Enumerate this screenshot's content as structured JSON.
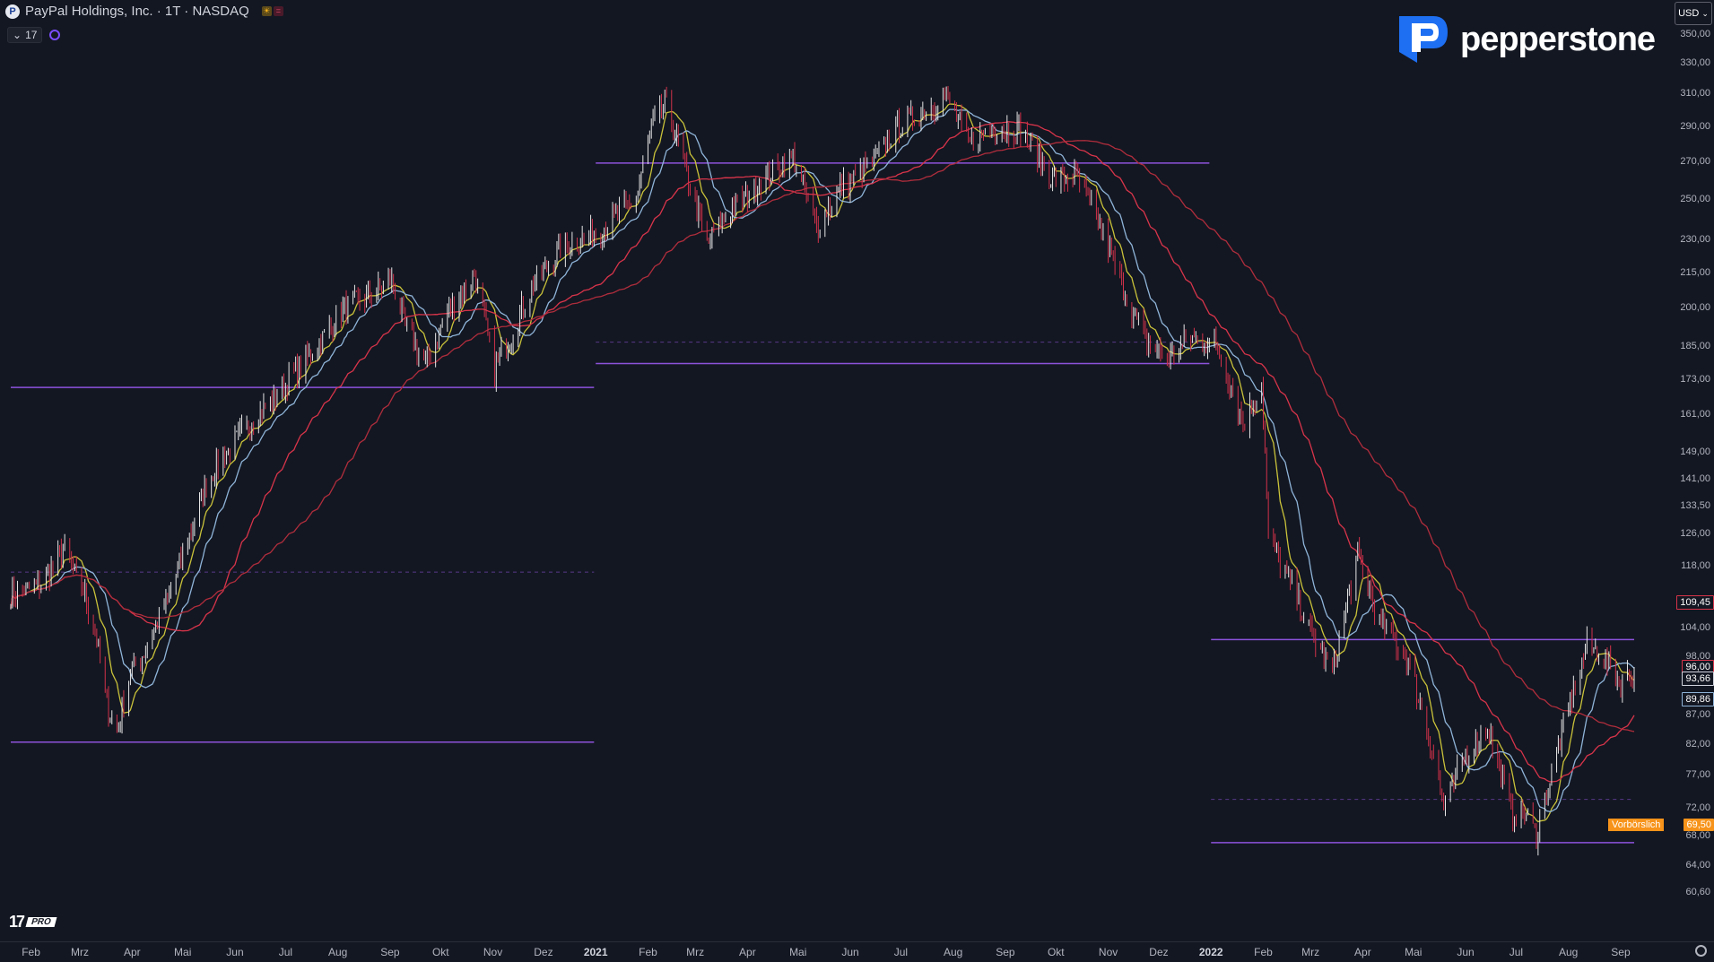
{
  "header": {
    "symbol_icon": "P",
    "title": "PayPal Holdings, Inc. · 1T · NASDAQ",
    "indicator_count": "17"
  },
  "brand": {
    "name": "pepperstone"
  },
  "currency": "USD",
  "watermark": {
    "mark": "17",
    "pro": "PRO"
  },
  "colors": {
    "background": "#131722",
    "up_candle": "#e6e6e6",
    "down_candle": "#d2314a",
    "horizontal_line": "#9b59f0",
    "sma10": "#c9c23a",
    "sma20": "#8fb4d8",
    "sma50": "#d8344a",
    "sma100": "#b02d3c",
    "last_price": "#f7931a"
  },
  "chart_data": {
    "type": "line",
    "title": "",
    "xlabel": "",
    "ylabel": "",
    "scale": "log",
    "ylim": [
      57,
      370
    ],
    "x_range": [
      "2020-01-20",
      "2022-09-09"
    ],
    "x_ticks": [
      {
        "label": "Feb",
        "date": "2020-02-01"
      },
      {
        "label": "Mrz",
        "date": "2020-03-01"
      },
      {
        "label": "Apr",
        "date": "2020-04-01"
      },
      {
        "label": "Mai",
        "date": "2020-05-01"
      },
      {
        "label": "Jun",
        "date": "2020-06-01"
      },
      {
        "label": "Jul",
        "date": "2020-07-01"
      },
      {
        "label": "Aug",
        "date": "2020-08-01"
      },
      {
        "label": "Sep",
        "date": "2020-09-01"
      },
      {
        "label": "Okt",
        "date": "2020-10-01"
      },
      {
        "label": "Nov",
        "date": "2020-11-01"
      },
      {
        "label": "Dez",
        "date": "2020-12-01"
      },
      {
        "label": "2021",
        "date": "2021-01-01",
        "bold": true
      },
      {
        "label": "Feb",
        "date": "2021-02-01"
      },
      {
        "label": "Mrz",
        "date": "2021-03-01"
      },
      {
        "label": "Apr",
        "date": "2021-04-01"
      },
      {
        "label": "Mai",
        "date": "2021-05-01"
      },
      {
        "label": "Jun",
        "date": "2021-06-01"
      },
      {
        "label": "Jul",
        "date": "2021-07-01"
      },
      {
        "label": "Aug",
        "date": "2021-08-01"
      },
      {
        "label": "Sep",
        "date": "2021-09-01"
      },
      {
        "label": "Okt",
        "date": "2021-10-01"
      },
      {
        "label": "Nov",
        "date": "2021-11-01"
      },
      {
        "label": "Dez",
        "date": "2021-12-01"
      },
      {
        "label": "2022",
        "date": "2022-01-01",
        "bold": true
      },
      {
        "label": "Feb",
        "date": "2022-02-01"
      },
      {
        "label": "Mrz",
        "date": "2022-03-01"
      },
      {
        "label": "Apr",
        "date": "2022-04-01"
      },
      {
        "label": "Mai",
        "date": "2022-05-01"
      },
      {
        "label": "Jun",
        "date": "2022-06-01"
      },
      {
        "label": "Jul",
        "date": "2022-07-01"
      },
      {
        "label": "Aug",
        "date": "2022-08-01"
      },
      {
        "label": "Sep",
        "date": "2022-09-01"
      }
    ],
    "y_ticks": [
      {
        "label": "350,00",
        "value": 350
      },
      {
        "label": "330,00",
        "value": 330
      },
      {
        "label": "310,00",
        "value": 310
      },
      {
        "label": "290,00",
        "value": 290
      },
      {
        "label": "270,00",
        "value": 270
      },
      {
        "label": "250,00",
        "value": 250
      },
      {
        "label": "230,00",
        "value": 230
      },
      {
        "label": "215,00",
        "value": 215
      },
      {
        "label": "200,00",
        "value": 200
      },
      {
        "label": "185,00",
        "value": 185
      },
      {
        "label": "173,00",
        "value": 173
      },
      {
        "label": "161,00",
        "value": 161
      },
      {
        "label": "149,00",
        "value": 149
      },
      {
        "label": "141,00",
        "value": 141
      },
      {
        "label": "133,50",
        "value": 133.5
      },
      {
        "label": "126,00",
        "value": 126
      },
      {
        "label": "118,00",
        "value": 118
      },
      {
        "label": "104,00",
        "value": 104
      },
      {
        "label": "98,00",
        "value": 98
      },
      {
        "label": "87,00",
        "value": 87
      },
      {
        "label": "82,00",
        "value": 82
      },
      {
        "label": "77,00",
        "value": 77
      },
      {
        "label": "72,00",
        "value": 72
      },
      {
        "label": "68,00",
        "value": 68
      },
      {
        "label": "64,00",
        "value": 64
      },
      {
        "label": "60,60",
        "value": 60.6
      }
    ],
    "price_labels": [
      {
        "label": "109,45",
        "value": 109.45,
        "style": "outline-red"
      },
      {
        "label": "96,00",
        "value": 96.0,
        "style": "outline-red"
      },
      {
        "label": "93,66",
        "value": 93.66,
        "style": "outline-white"
      },
      {
        "label": "89,86",
        "value": 89.86,
        "style": "outline-blue"
      }
    ],
    "last_price": {
      "label": "69,50",
      "value": 69.5,
      "tag": "Vorbörslich"
    },
    "horizontal_levels": [
      {
        "value": 170.0,
        "from": "2020-01-20",
        "to": "2020-12-31",
        "style": "solid"
      },
      {
        "value": 82.3,
        "from": "2020-01-20",
        "to": "2020-12-31",
        "style": "solid"
      },
      {
        "value": 116.5,
        "from": "2020-01-20",
        "to": "2020-12-31",
        "style": "dashed"
      },
      {
        "value": 269.0,
        "from": "2021-01-01",
        "to": "2021-12-31",
        "style": "solid"
      },
      {
        "value": 178.5,
        "from": "2021-01-01",
        "to": "2021-12-31",
        "style": "solid"
      },
      {
        "value": 186.5,
        "from": "2021-01-01",
        "to": "2021-12-31",
        "style": "dashed"
      },
      {
        "value": 101.5,
        "from": "2022-01-01",
        "to": "2022-09-09",
        "style": "solid"
      },
      {
        "value": 67.0,
        "from": "2022-01-01",
        "to": "2022-09-09",
        "style": "solid"
      },
      {
        "value": 73.2,
        "from": "2022-01-01",
        "to": "2022-09-09",
        "style": "dashed"
      }
    ],
    "price_path": [
      [
        "2020-01-20",
        111
      ],
      [
        "2020-02-08",
        114
      ],
      [
        "2020-02-20",
        122
      ],
      [
        "2020-03-03",
        112
      ],
      [
        "2020-03-10",
        104
      ],
      [
        "2020-03-16",
        90
      ],
      [
        "2020-03-23",
        84
      ],
      [
        "2020-03-31",
        95
      ],
      [
        "2020-04-10",
        100
      ],
      [
        "2020-04-24",
        112
      ],
      [
        "2020-05-06",
        127
      ],
      [
        "2020-05-15",
        140
      ],
      [
        "2020-05-29",
        150
      ],
      [
        "2020-06-10",
        158
      ],
      [
        "2020-06-30",
        170
      ],
      [
        "2020-07-20",
        185
      ],
      [
        "2020-08-05",
        200
      ],
      [
        "2020-08-20",
        205
      ],
      [
        "2020-09-02",
        212
      ],
      [
        "2020-09-10",
        193
      ],
      [
        "2020-09-22",
        178
      ],
      [
        "2020-10-05",
        198
      ],
      [
        "2020-10-21",
        214
      ],
      [
        "2020-11-02",
        176
      ],
      [
        "2020-11-12",
        189
      ],
      [
        "2020-11-25",
        210
      ],
      [
        "2020-12-10",
        225
      ],
      [
        "2020-12-31",
        233
      ],
      [
        "2021-01-12",
        240
      ],
      [
        "2021-01-25",
        250
      ],
      [
        "2021-02-03",
        288
      ],
      [
        "2021-02-11",
        305
      ],
      [
        "2021-02-24",
        262
      ],
      [
        "2021-03-08",
        228
      ],
      [
        "2021-03-22",
        245
      ],
      [
        "2021-04-05",
        255
      ],
      [
        "2021-04-16",
        265
      ],
      [
        "2021-04-28",
        272
      ],
      [
        "2021-05-12",
        236
      ],
      [
        "2021-05-26",
        255
      ],
      [
        "2021-06-15",
        270
      ],
      [
        "2021-06-29",
        290
      ],
      [
        "2021-07-20",
        303
      ],
      [
        "2021-07-28",
        308
      ],
      [
        "2021-08-10",
        280
      ],
      [
        "2021-08-25",
        290
      ],
      [
        "2021-09-10",
        288
      ],
      [
        "2021-09-29",
        260
      ],
      [
        "2021-10-13",
        262
      ],
      [
        "2021-10-28",
        235
      ],
      [
        "2021-11-09",
        210
      ],
      [
        "2021-11-22",
        188
      ],
      [
        "2021-12-06",
        180
      ],
      [
        "2021-12-20",
        188
      ],
      [
        "2022-01-05",
        185
      ],
      [
        "2022-01-20",
        158
      ],
      [
        "2022-01-31",
        171
      ],
      [
        "2022-02-04",
        125
      ],
      [
        "2022-02-17",
        114
      ],
      [
        "2022-03-01",
        103
      ],
      [
        "2022-03-14",
        95
      ],
      [
        "2022-03-29",
        120
      ],
      [
        "2022-04-11",
        105
      ],
      [
        "2022-04-27",
        98
      ],
      [
        "2022-05-09",
        85
      ],
      [
        "2022-05-19",
        72
      ],
      [
        "2022-06-01",
        80
      ],
      [
        "2022-06-14",
        85
      ],
      [
        "2022-06-28",
        71
      ],
      [
        "2022-07-07",
        71
      ],
      [
        "2022-07-13",
        68
      ],
      [
        "2022-07-22",
        77
      ],
      [
        "2022-08-01",
        88
      ],
      [
        "2022-08-12",
        100
      ],
      [
        "2022-08-19",
        99
      ],
      [
        "2022-09-01",
        93
      ],
      [
        "2022-09-09",
        95
      ]
    ],
    "series": [
      {
        "color_key": "sma10",
        "period": 10
      },
      {
        "color_key": "sma20",
        "period": 20
      },
      {
        "color_key": "sma50",
        "period": 50
      },
      {
        "color_key": "sma100",
        "period": 100
      }
    ]
  }
}
